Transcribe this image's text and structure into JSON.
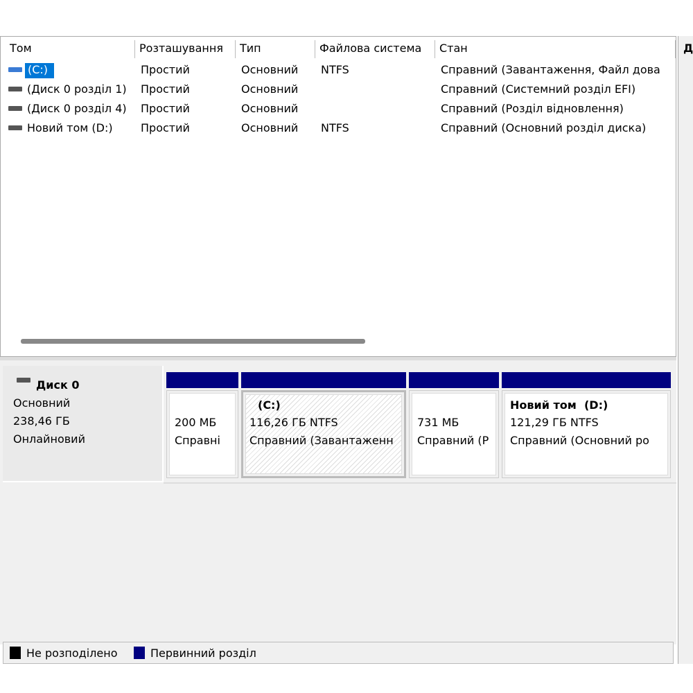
{
  "table": {
    "columns": [
      "Том",
      "Розташування",
      "Тип",
      "Файлова система",
      "Стан"
    ],
    "rows": [
      [
        "(C:)",
        "Простий",
        "Основний",
        "NTFS",
        "Справний (Завантаження, Файл дова"
      ],
      [
        "(Диск 0 розділ 1)",
        "Простий",
        "Основний",
        "",
        "Справний (Системний розділ EFI)"
      ],
      [
        "(Диск 0 розділ 4)",
        "Простий",
        "Основний",
        "",
        "Справний (Розділ відновлення)"
      ],
      [
        "Новий том (D:)",
        "Простий",
        "Основний",
        "NTFS",
        "Справний (Основний розділ диска)"
      ]
    ]
  },
  "side_panel": {
    "header": "Д"
  },
  "disk": {
    "name": "Диск 0",
    "type": "Основний",
    "size": "238,46 ГБ",
    "status": "Онлайновий"
  },
  "partitions": [
    {
      "label": "",
      "size": "200 МБ",
      "status": "Справні"
    },
    {
      "label": "(C:)",
      "size": "116,26 ГБ NTFS",
      "status": "Справний (Завантаженн"
    },
    {
      "label": "",
      "size": "731 МБ",
      "status": "Справний (Р"
    },
    {
      "label": "Новий том  (D:)",
      "size": "121,29 ГБ NTFS",
      "status": "Справний (Основний ро"
    }
  ],
  "legend": [
    "Не розподілено",
    "Первинний розділ"
  ]
}
